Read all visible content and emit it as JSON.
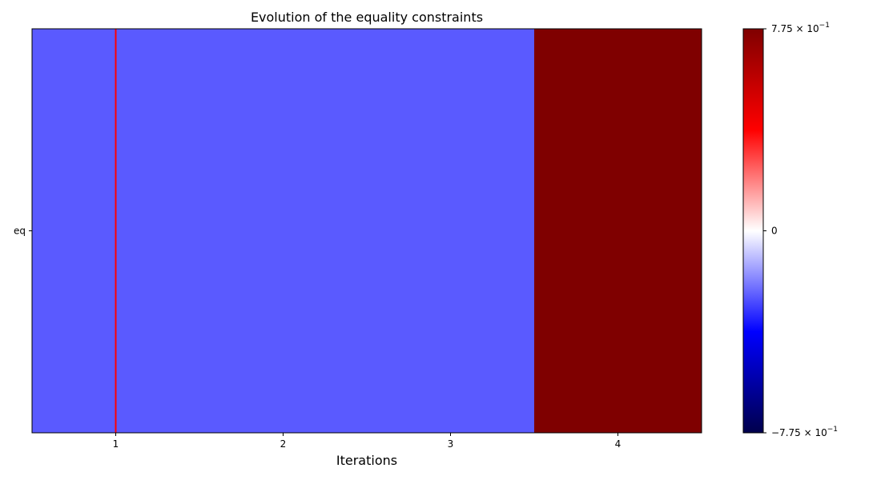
{
  "chart_data": {
    "type": "heatmap",
    "title": "Evolution of the equality constraints",
    "xlabel": "Iterations",
    "ylabel": "",
    "x_categories": [
      1,
      2,
      3,
      4
    ],
    "y_categories": [
      "eq"
    ],
    "values": [
      [
        -0.25,
        -0.25,
        -0.25,
        0.775
      ]
    ],
    "xlim": [
      0.5,
      4.5
    ],
    "colormap": "seismic",
    "color_range": [
      -0.775,
      0.775
    ],
    "colorbar_ticks": [
      {
        "value": -0.775,
        "base": "−7.75 × 10",
        "exp": "−1"
      },
      {
        "value": 0,
        "base": "0",
        "exp": ""
      },
      {
        "value": 0.775,
        "base": "7.75 × 10",
        "exp": "−1"
      }
    ],
    "reference_line": {
      "x": 1,
      "color": "#ff0000"
    },
    "grid": false
  }
}
